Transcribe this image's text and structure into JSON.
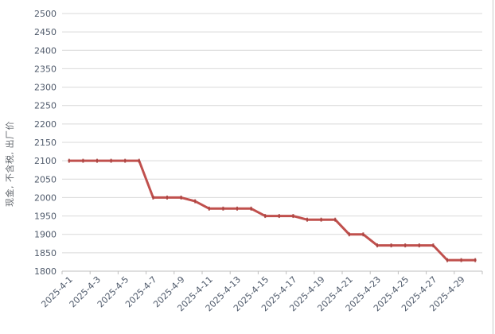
{
  "chart_data": {
    "type": "line",
    "title": "",
    "ylabel": "现金, 不含税, 出厂价",
    "xlabel": "",
    "x": [
      "2025-4-1",
      "2025-4-2",
      "2025-4-3",
      "2025-4-4",
      "2025-4-5",
      "2025-4-6",
      "2025-4-7",
      "2025-4-8",
      "2025-4-9",
      "2025-4-10",
      "2025-4-11",
      "2025-4-12",
      "2025-4-13",
      "2025-4-14",
      "2025-4-15",
      "2025-4-16",
      "2025-4-17",
      "2025-4-18",
      "2025-4-19",
      "2025-4-20",
      "2025-4-21",
      "2025-4-22",
      "2025-4-23",
      "2025-4-24",
      "2025-4-25",
      "2025-4-26",
      "2025-4-27",
      "2025-4-28",
      "2025-4-29",
      "2025-4-30"
    ],
    "values": [
      2100,
      2100,
      2100,
      2100,
      2100,
      2100,
      2000,
      2000,
      2000,
      1990,
      1970,
      1970,
      1970,
      1970,
      1950,
      1950,
      1950,
      1940,
      1940,
      1940,
      1900,
      1900,
      1870,
      1870,
      1870,
      1870,
      1870,
      1830,
      1830,
      1830
    ],
    "xtick_labels": [
      "2025-4-1",
      "2025-4-3",
      "2025-4-5",
      "2025-4-7",
      "2025-4-9",
      "2025-4-11",
      "2025-4-13",
      "2025-4-15",
      "2025-4-17",
      "2025-4-19",
      "2025-4-21",
      "2025-4-23",
      "2025-4-25",
      "2025-4-27",
      "2025-4-29"
    ],
    "yticks": [
      1800,
      1850,
      1900,
      1950,
      2000,
      2050,
      2100,
      2150,
      2200,
      2250,
      2300,
      2350,
      2400,
      2450,
      2500
    ],
    "ylim": [
      1800,
      2500
    ],
    "grid": true,
    "legend": false,
    "colors": {
      "line": "#C0504D",
      "marker": "#A8423F",
      "grid": "#D9D9D9",
      "axis": "#BFBFBF",
      "tick_label": "#4F5A6B",
      "border": "#C9C9C9",
      "background": "#FFFFFF"
    }
  }
}
